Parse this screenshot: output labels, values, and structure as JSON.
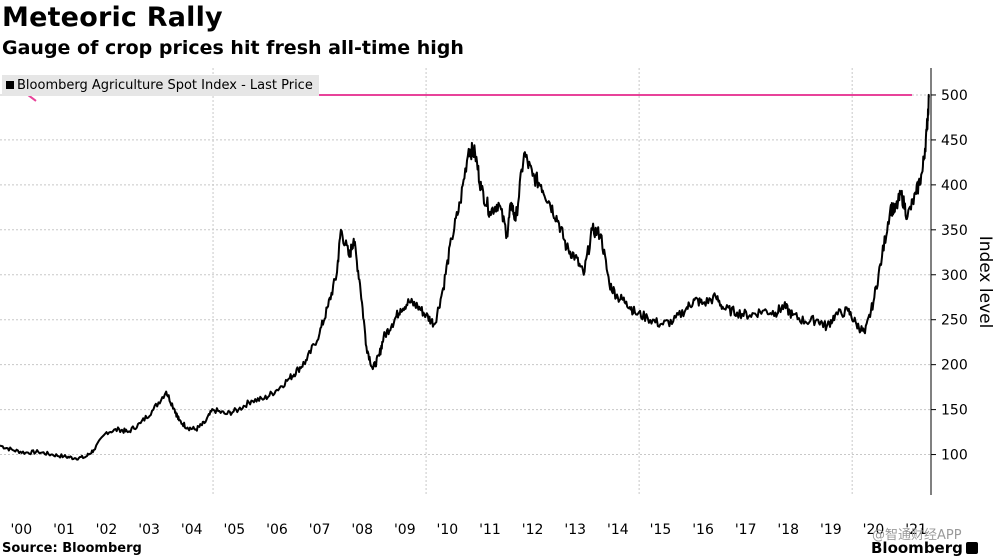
{
  "title": "Meteoric Rally",
  "subtitle": "Gauge of crop prices hit fresh all-time high",
  "source": "Source: Bloomberg",
  "brand": "Bloomberg",
  "watermark": "@智通财经APP",
  "colors": {
    "line": "#000000",
    "annotation": "#e8439a",
    "grid": "#c8c8c8",
    "legend_bg": "#e6e6e6"
  },
  "chart_data": {
    "type": "line",
    "title": "Meteoric Rally",
    "subtitle": "Gauge of crop prices hit fresh all-time high",
    "ylabel": "Index level",
    "xlabel": "",
    "legend": [
      "Bloomberg Agriculture Spot Index - Last Price"
    ],
    "legend_position": "top-left",
    "grid": true,
    "xlim": [
      2000.0,
      2021.85
    ],
    "ylim": [
      55,
      530
    ],
    "y_ticks": [
      100,
      150,
      200,
      250,
      300,
      350,
      400,
      450,
      500
    ],
    "x_tick_years": [
      2000,
      2001,
      2002,
      2003,
      2004,
      2005,
      2006,
      2007,
      2008,
      2009,
      2010,
      2011,
      2012,
      2013,
      2014,
      2015,
      2016,
      2017,
      2018,
      2019,
      2020,
      2021
    ],
    "x_tick_labels": [
      "'00",
      "'01",
      "'02",
      "'03",
      "'04",
      "'05",
      "'06",
      "'07",
      "'08",
      "'09",
      "'10",
      "'11",
      "'12",
      "'13",
      "'14",
      "'15",
      "'16",
      "'17",
      "'18",
      "'19",
      "'20",
      "'21"
    ],
    "annotation": {
      "type": "horizontal-arrow",
      "value": 500,
      "direction": "left",
      "label": ""
    },
    "series": [
      {
        "name": "Bloomberg Agriculture Spot Index - Last Price",
        "x": [
          2000.0,
          2000.3,
          2000.6,
          2000.9,
          2001.2,
          2001.5,
          2001.75,
          2002.0,
          2002.2,
          2002.5,
          2002.8,
          2003.0,
          2003.3,
          2003.6,
          2003.9,
          2004.1,
          2004.2,
          2004.4,
          2004.6,
          2004.8,
          2005.0,
          2005.3,
          2005.6,
          2005.9,
          2006.2,
          2006.5,
          2006.8,
          2007.0,
          2007.2,
          2007.5,
          2007.7,
          2007.9,
          2008.0,
          2008.2,
          2008.3,
          2008.45,
          2008.6,
          2008.75,
          2008.9,
          2009.0,
          2009.2,
          2009.4,
          2009.6,
          2009.8,
          2010.0,
          2010.2,
          2010.4,
          2010.6,
          2010.8,
          2011.0,
          2011.15,
          2011.3,
          2011.5,
          2011.7,
          2011.9,
          2012.0,
          2012.1,
          2012.3,
          2012.5,
          2012.7,
          2012.9,
          2013.1,
          2013.3,
          2013.5,
          2013.7,
          2013.9,
          2014.1,
          2014.3,
          2014.5,
          2014.7,
          2014.9,
          2015.2,
          2015.5,
          2015.8,
          2016.1,
          2016.3,
          2016.5,
          2016.8,
          2017.0,
          2017.3,
          2017.6,
          2017.9,
          2018.2,
          2018.4,
          2018.6,
          2018.9,
          2019.2,
          2019.4,
          2019.6,
          2019.9,
          2020.1,
          2020.3,
          2020.5,
          2020.7,
          2020.9,
          2021.0,
          2021.15,
          2021.3,
          2021.5,
          2021.65,
          2021.75,
          2021.8
        ],
        "values": [
          110,
          105,
          102,
          103,
          100,
          98,
          96,
          97,
          105,
          125,
          128,
          125,
          135,
          150,
          170,
          150,
          138,
          130,
          128,
          135,
          150,
          145,
          150,
          160,
          162,
          172,
          185,
          195,
          205,
          235,
          265,
          300,
          350,
          320,
          340,
          290,
          220,
          195,
          210,
          230,
          245,
          262,
          270,
          265,
          255,
          245,
          285,
          340,
          380,
          440,
          435,
          395,
          370,
          380,
          345,
          380,
          360,
          435,
          410,
          400,
          380,
          360,
          330,
          320,
          300,
          350,
          345,
          290,
          275,
          270,
          258,
          252,
          245,
          248,
          262,
          272,
          268,
          275,
          262,
          258,
          255,
          260,
          258,
          265,
          255,
          248,
          250,
          242,
          255,
          260,
          245,
          235,
          270,
          320,
          375,
          370,
          390,
          365,
          390,
          415,
          460,
          497
        ]
      }
    ]
  }
}
